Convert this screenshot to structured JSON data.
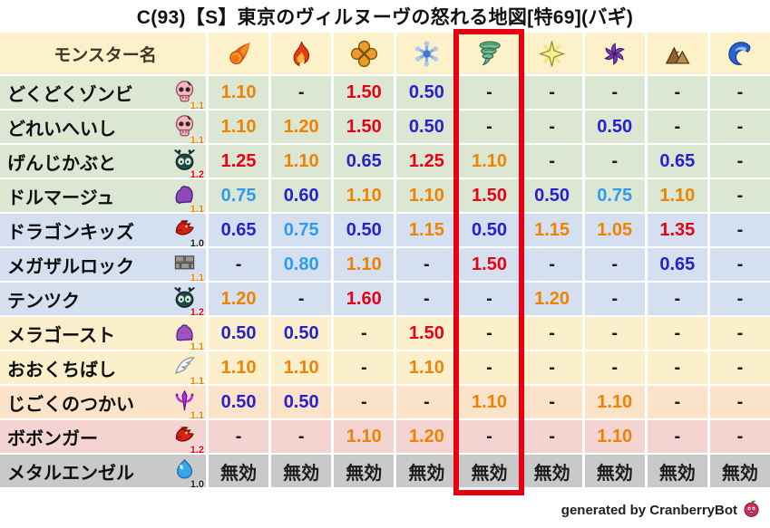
{
  "chart_data": {
    "type": "table",
    "title": "C(93)【S】東京のヴィルヌーヴの怒れる地図[特69](バギ)",
    "row_header": "モンスター名",
    "columns": [
      {
        "icon": "fireball-icon"
      },
      {
        "icon": "flame-icon"
      },
      {
        "icon": "explosion-icon"
      },
      {
        "icon": "snowflake-icon"
      },
      {
        "icon": "tornado-icon",
        "highlighted": true
      },
      {
        "icon": "sparkle-icon"
      },
      {
        "icon": "pinwheel-icon"
      },
      {
        "icon": "mountain-icon"
      },
      {
        "icon": "wave-icon"
      }
    ],
    "highlighted_column_index": 4,
    "rows": [
      {
        "name": "どくどくゾンビ",
        "icon": "skull-icon",
        "rank": "1.1",
        "family": "green",
        "values": [
          "1.10",
          "-",
          "1.50",
          "0.50",
          "-",
          "-",
          "-",
          "-",
          "-"
        ]
      },
      {
        "name": "どれいへいし",
        "icon": "skull-icon",
        "rank": "1.1",
        "family": "green",
        "values": [
          "1.10",
          "1.20",
          "1.50",
          "0.50",
          "-",
          "-",
          "0.50",
          "-",
          "-"
        ]
      },
      {
        "name": "げんじかぶと",
        "icon": "beetle-icon",
        "rank": "1.2",
        "family": "green",
        "values": [
          "1.25",
          "1.10",
          "0.65",
          "1.25",
          "1.10",
          "-",
          "-",
          "0.65",
          "-"
        ]
      },
      {
        "name": "ドルマージュ",
        "icon": "shadow-icon",
        "rank": "1.1",
        "family": "green",
        "values": [
          "0.75",
          "0.60",
          "1.10",
          "1.10",
          "1.50",
          "0.50",
          "0.75",
          "1.10",
          "-"
        ]
      },
      {
        "name": "ドラゴンキッズ",
        "icon": "dragon-icon",
        "rank": "1.0",
        "family": "blue",
        "values": [
          "0.65",
          "0.75",
          "0.50",
          "1.15",
          "0.50",
          "1.15",
          "1.05",
          "1.35",
          "-"
        ]
      },
      {
        "name": "メガザルロック",
        "icon": "brick-icon",
        "rank": "1.1",
        "family": "blue",
        "values": [
          "-",
          "0.80",
          "1.10",
          "-",
          "1.50",
          "-",
          "-",
          "0.65",
          "-"
        ]
      },
      {
        "name": "テンツク",
        "icon": "beetle-icon",
        "rank": "1.2",
        "family": "blue",
        "values": [
          "1.20",
          "-",
          "1.60",
          "-",
          "-",
          "1.20",
          "-",
          "-",
          "-"
        ]
      },
      {
        "name": "メラゴースト",
        "icon": "ghost-icon",
        "rank": "1.1",
        "family": "cream",
        "values": [
          "0.50",
          "0.50",
          "-",
          "1.50",
          "-",
          "-",
          "-",
          "-",
          "-"
        ]
      },
      {
        "name": "おおくちばし",
        "icon": "wing-icon",
        "rank": "1.1",
        "family": "cream",
        "values": [
          "1.10",
          "1.10",
          "-",
          "1.10",
          "-",
          "-",
          "-",
          "-",
          "-"
        ]
      },
      {
        "name": "じごくのつかい",
        "icon": "trident-icon",
        "rank": "1.1",
        "family": "peach",
        "values": [
          "0.50",
          "0.50",
          "-",
          "-",
          "1.10",
          "-",
          "1.10",
          "-",
          "-"
        ]
      },
      {
        "name": "ボボンガー",
        "icon": "dragon-icon",
        "rank": "1.2",
        "family": "pink",
        "values": [
          "-",
          "-",
          "1.10",
          "1.20",
          "-",
          "-",
          "1.10",
          "-",
          "-"
        ]
      },
      {
        "name": "メタルエンゼル",
        "icon": "slime-icon",
        "rank": "1.0",
        "family": "gray",
        "values": [
          "無効",
          "無効",
          "無効",
          "無効",
          "無効",
          "無効",
          "無効",
          "無効",
          "無効"
        ]
      }
    ],
    "immune_label": "無効",
    "footer": "generated by CranberryBot"
  },
  "palette": {
    "highlight_red": "#e70012",
    "value_red": "#e60113",
    "value_orange": "#ef8200",
    "value_lightblue": "#2e9bf3",
    "value_blue": "#2521cf",
    "text_dark": "#1b1b1b",
    "header_bg": "#fcf1c9",
    "family": {
      "green": "#dce7d3",
      "blue": "#d4e0ef",
      "cream": "#fbf0cb",
      "peach": "#fae3c8",
      "pink": "#f3d4d1",
      "gray": "#c9c9c9"
    }
  }
}
